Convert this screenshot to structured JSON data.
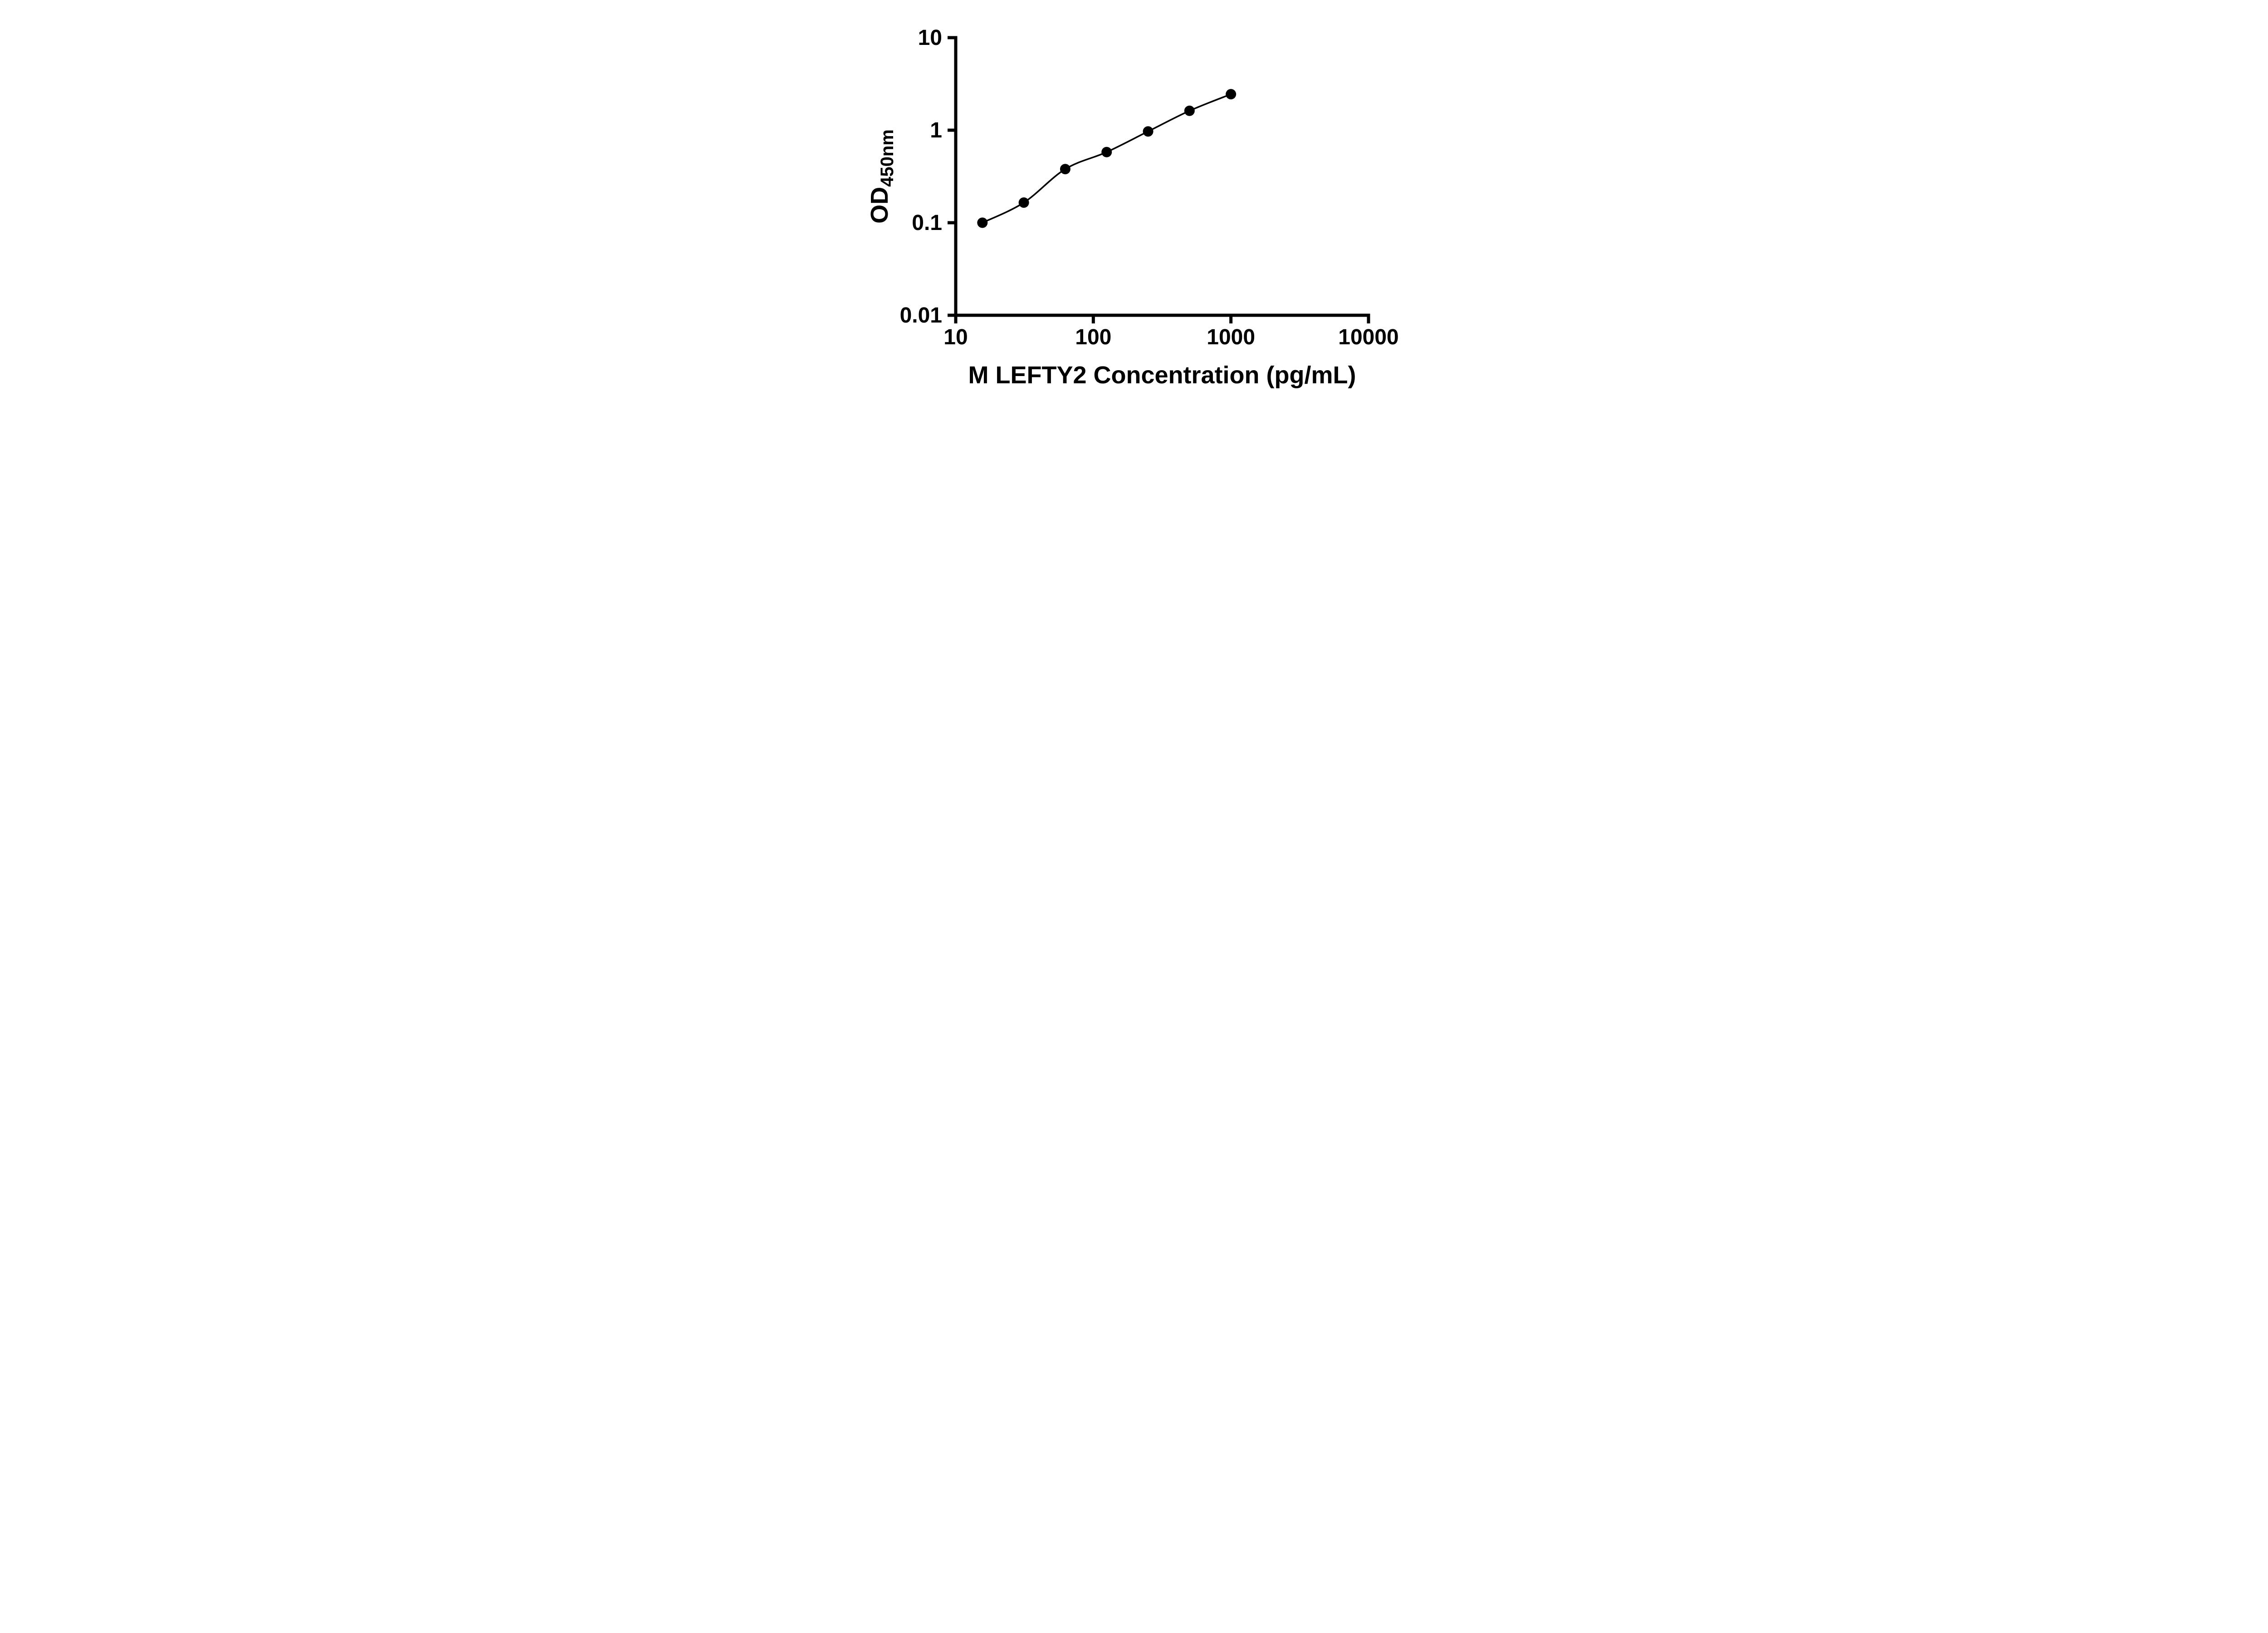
{
  "page": {
    "background_color": "#ffffff",
    "foreground_color": "#000000"
  },
  "chart_data": {
    "type": "scatter",
    "subtype": "standard-curve-with-fit-line",
    "title": "",
    "xlabel": "M LEFTY2 Concentration (pg/mL)",
    "ylabel_main": "OD",
    "ylabel_sub": "450nm",
    "x_scale": "log",
    "y_scale": "log",
    "xlim": [
      10,
      10000
    ],
    "ylim": [
      0.01,
      10
    ],
    "x_ticks": [
      10,
      100,
      1000,
      10000
    ],
    "x_tick_labels": [
      "10",
      "100",
      "1000",
      "10000"
    ],
    "y_ticks": [
      0.01,
      0.1,
      1,
      10
    ],
    "y_tick_labels": [
      "0.01",
      "0.1",
      "1",
      "10"
    ],
    "grid": false,
    "legend": "none",
    "x": [
      15.625,
      31.25,
      62.5,
      125,
      250,
      500,
      1000
    ],
    "y": [
      0.1,
      0.165,
      0.38,
      0.58,
      0.97,
      1.62,
      2.45
    ],
    "marker_color": "#000000",
    "marker_radius": 11.5,
    "line_color": "#000000",
    "line_width": 3.5,
    "axis_color": "#000000",
    "axis_width": 7,
    "tick_length": 18
  }
}
